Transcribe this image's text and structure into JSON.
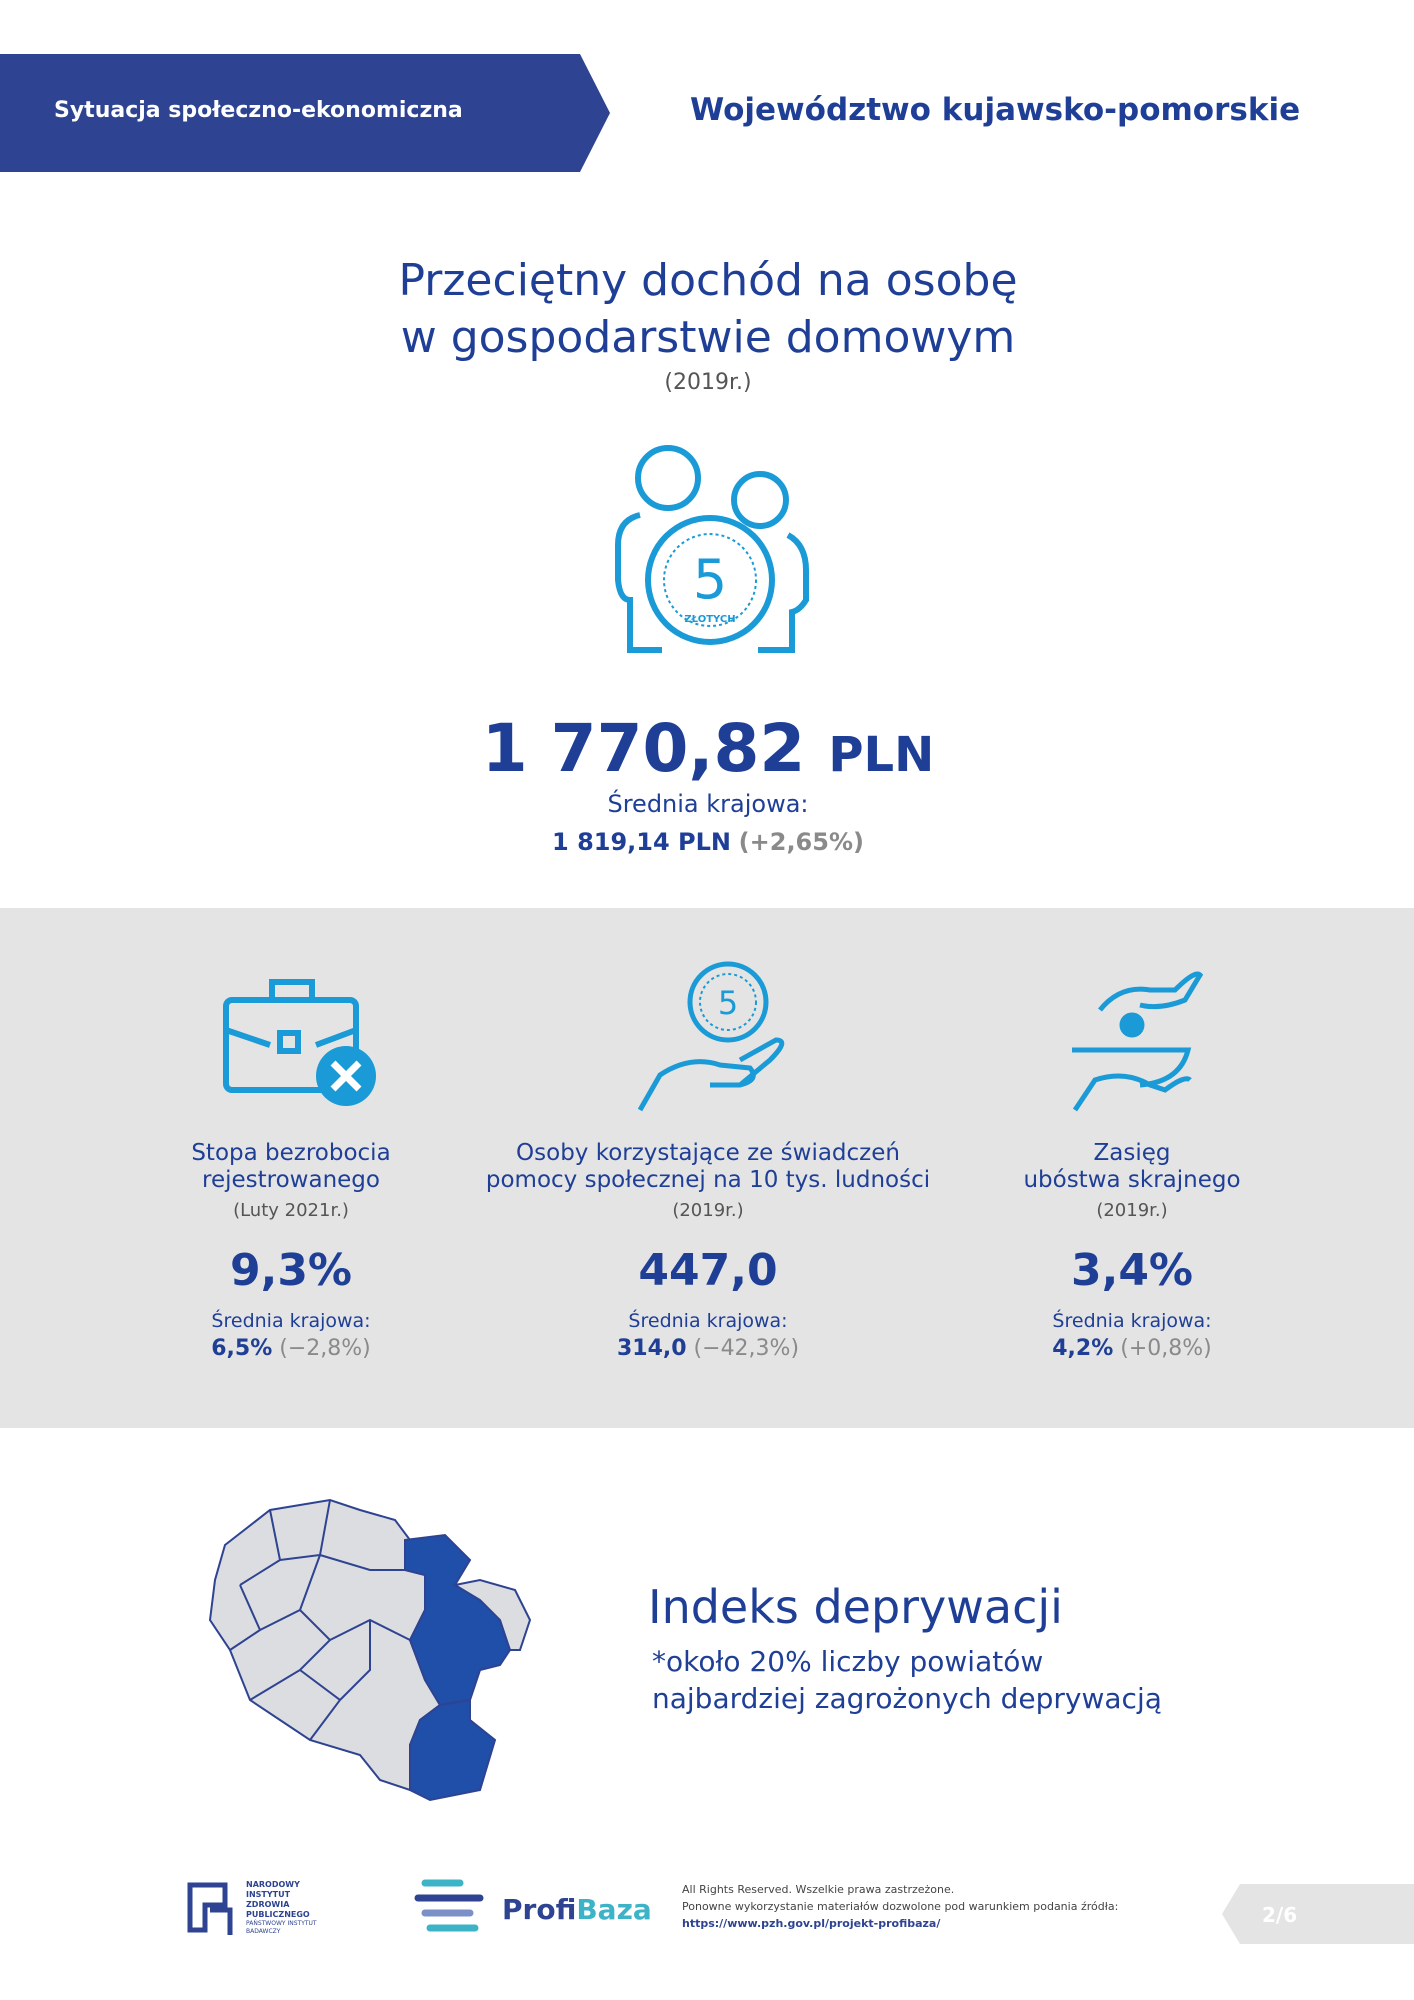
{
  "header": {
    "section": "Sytuacja społeczno-ekonomiczna",
    "region": "Województwo kujawsko-pomorskie"
  },
  "income": {
    "title_lines": [
      "Przeciętny dochód na osobę",
      "w gospodarstwie domowym"
    ],
    "period": "(2019r.)",
    "coin_value": "5",
    "coin_text": "ZŁOTYCH",
    "value": "1 770,82",
    "unit": "PLN",
    "national_label": "Średnia krajowa:",
    "national_value": "1 819,14 PLN",
    "national_diff": "(+2,65%)"
  },
  "indicators": [
    {
      "label_lines": [
        "Stopa bezrobocia",
        "rejestrowanego"
      ],
      "period": "(Luty 2021r.)",
      "value": "9,3%",
      "national_label": "Średnia krajowa:",
      "national_value": "6,5%",
      "national_diff": "(−2,8%)"
    },
    {
      "label_lines": [
        "Osoby korzystające ze świadczeń",
        "pomocy społecznej na 10 tys. ludności"
      ],
      "period": "(2019r.)",
      "value": "447,0",
      "national_label": "Średnia krajowa:",
      "national_value": "314,0",
      "national_diff": "(−42,3%)"
    },
    {
      "label_lines": [
        "Zasięg",
        "ubóstwa skrajnego"
      ],
      "period": "(2019r.)",
      "value": "3,4%",
      "national_label": "Średnia krajowa:",
      "national_value": "4,2%",
      "national_diff": "(+0,8%)"
    }
  ],
  "deprivation": {
    "title": "Indeks deprywacji",
    "note_lines": [
      "*około 20% liczby powiatów",
      "najbardziej zagrożonych deprywacją"
    ]
  },
  "footer": {
    "nizp_lines": [
      "NARODOWY",
      "INSTYTUT",
      "ZDROWIA",
      "PUBLICZNEGO"
    ],
    "nizp_sub_lines": [
      "PAŃSTWOWY INSTYTUT",
      "BADAWCZY"
    ],
    "profibaza": [
      "Profi",
      "Baza"
    ],
    "rights_lines": [
      "All Rights Reserved. Wszelkie prawa zastrzeżone.",
      "Ponowne wykorzystanie materiałów dozwolone pod warunkiem podania źródła:"
    ],
    "url": "https://www.pzh.gov.pl/projekt-profibaza/",
    "page": "2/6"
  }
}
